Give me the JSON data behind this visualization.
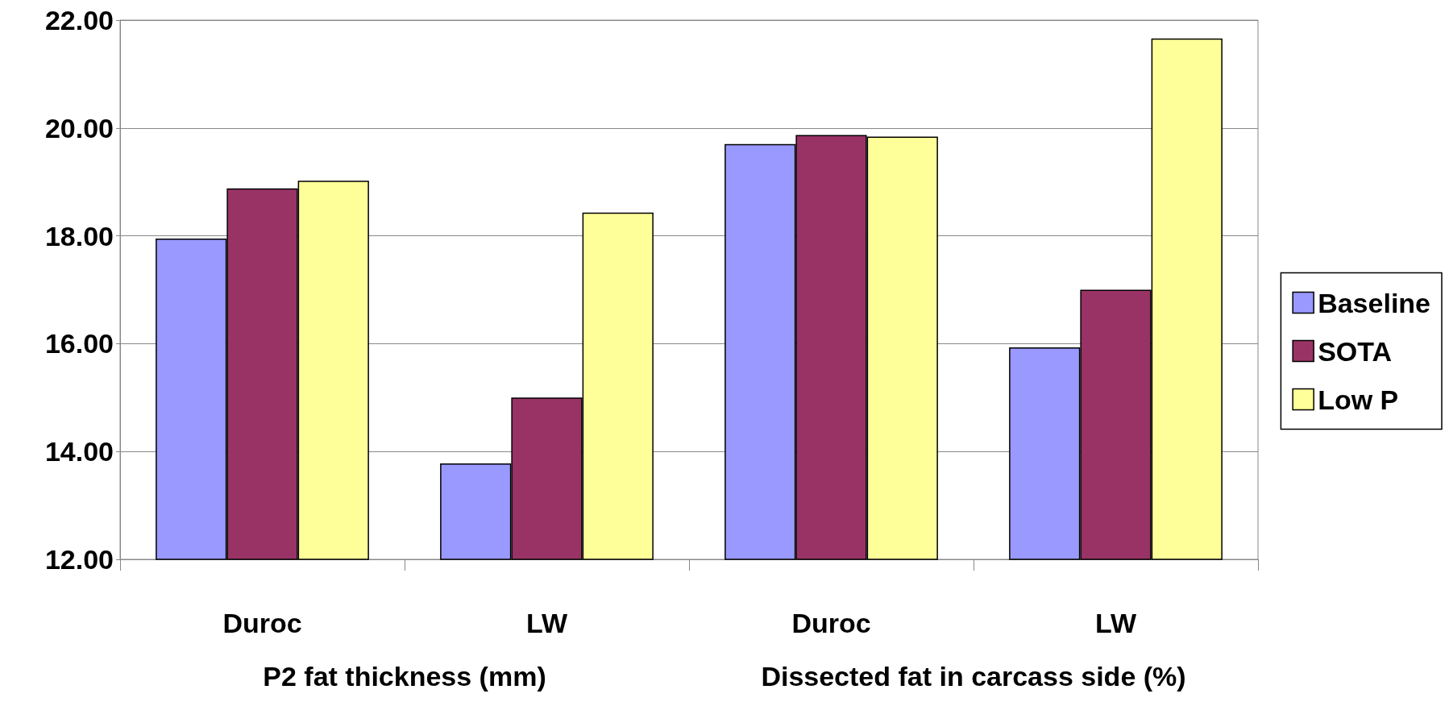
{
  "chart_data": {
    "type": "bar",
    "categories": [
      "Duroc",
      "LW",
      "Duroc",
      "LW"
    ],
    "annotations": [
      "P2 fat thickness (mm)",
      "Dissected fat in carcass side (%)"
    ],
    "series": [
      {
        "name": "Baseline",
        "color": "#9999ff",
        "values": [
          17.95,
          13.78,
          19.7,
          15.93
        ]
      },
      {
        "name": "SOTA",
        "color": "#993366",
        "values": [
          18.88,
          15.0,
          19.87,
          17.0
        ]
      },
      {
        "name": "Low P",
        "color": "#ffff99",
        "values": [
          19.02,
          18.43,
          19.84,
          21.66
        ]
      }
    ],
    "ylim": [
      12,
      22
    ],
    "yticks": [
      {
        "value": 12,
        "label": "12.00"
      },
      {
        "value": 14,
        "label": "14.00"
      },
      {
        "value": 16,
        "label": "16.00"
      },
      {
        "value": 18,
        "label": "18.00"
      },
      {
        "value": 20,
        "label": "20.00"
      },
      {
        "value": 22,
        "label": "22.00"
      }
    ],
    "grid": "y",
    "legend": "right"
  }
}
